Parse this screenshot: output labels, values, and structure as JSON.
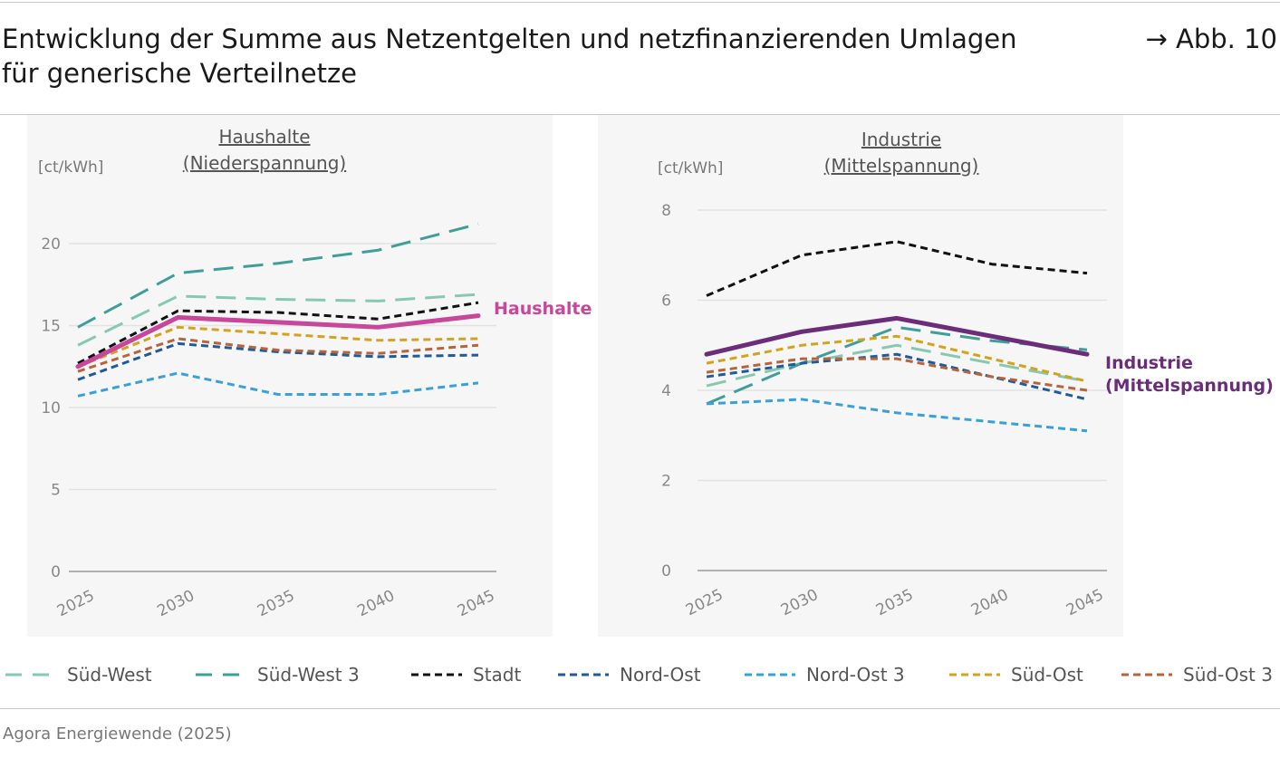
{
  "header": {
    "title_line1": "Entwicklung der Summe aus Netzentgelten und netzfinanzierenden Umlagen",
    "title_line2": "für generische Verteilnetze",
    "figure_ref": "→ Abb. 10"
  },
  "source": "Agora Energiewende (2025)",
  "chart_data": [
    {
      "type": "line",
      "title_line1": "Haushalte",
      "title_line2": "(Niederspannung)",
      "ylabel": "[ct/kWh]",
      "ylim": [
        0,
        22
      ],
      "yticks": [
        0,
        5,
        10,
        15,
        20
      ],
      "x": [
        "2025",
        "2030",
        "2035",
        "2040",
        "2045"
      ],
      "highlight_label": "Haushalte",
      "highlight_color": "#c8479a",
      "series": [
        {
          "name": "Süd-West",
          "values": [
            13.8,
            16.8,
            16.6,
            16.5,
            16.9
          ],
          "color": "#86c9b0",
          "dash": "long"
        },
        {
          "name": "Süd-West 3",
          "values": [
            14.9,
            18.2,
            18.8,
            19.6,
            21.2
          ],
          "color": "#3f9e9a",
          "dash": "long"
        },
        {
          "name": "Stadt",
          "values": [
            12.7,
            15.9,
            15.8,
            15.4,
            16.4
          ],
          "color": "#111111",
          "dash": "short"
        },
        {
          "name": "Nord-Ost",
          "values": [
            11.7,
            13.9,
            13.4,
            13.1,
            13.2
          ],
          "color": "#1e5a9c",
          "dash": "short"
        },
        {
          "name": "Nord-Ost 3",
          "values": [
            10.7,
            12.1,
            10.8,
            10.8,
            11.5
          ],
          "color": "#3aa0d8",
          "dash": "short"
        },
        {
          "name": "Süd-Ost",
          "values": [
            12.5,
            14.9,
            14.5,
            14.1,
            14.2
          ],
          "color": "#d4a21c",
          "dash": "short"
        },
        {
          "name": "Süd-Ost 3",
          "values": [
            12.2,
            14.2,
            13.5,
            13.3,
            13.8
          ],
          "color": "#b8633a",
          "dash": "short"
        },
        {
          "name": "Haushalte",
          "values": [
            12.5,
            15.5,
            15.2,
            14.9,
            15.6
          ],
          "color": "#c8479a",
          "dash": "solid",
          "highlight": true
        }
      ]
    },
    {
      "type": "line",
      "title_line1": "Industrie",
      "title_line2": "(Mittelspannung)",
      "ylabel": "[ct/kWh]",
      "ylim": [
        0,
        8
      ],
      "yticks": [
        0,
        2,
        4,
        6,
        8
      ],
      "x": [
        "2025",
        "2030",
        "2035",
        "2040",
        "2045"
      ],
      "highlight_label_line1": "Industrie",
      "highlight_label_line2": "(Mittelspannung)",
      "highlight_color": "#6b2d7a",
      "series": [
        {
          "name": "Süd-West",
          "values": [
            4.1,
            4.6,
            5.0,
            4.6,
            4.2
          ],
          "color": "#86c9b0",
          "dash": "long"
        },
        {
          "name": "Süd-West 3",
          "values": [
            3.7,
            4.6,
            5.4,
            5.1,
            4.9
          ],
          "color": "#3f9e9a",
          "dash": "long"
        },
        {
          "name": "Stadt",
          "values": [
            6.1,
            7.0,
            7.3,
            6.8,
            6.6
          ],
          "color": "#111111",
          "dash": "short"
        },
        {
          "name": "Nord-Ost",
          "values": [
            4.3,
            4.6,
            4.8,
            4.3,
            3.8
          ],
          "color": "#1e5a9c",
          "dash": "short"
        },
        {
          "name": "Nord-Ost 3",
          "values": [
            3.7,
            3.8,
            3.5,
            3.3,
            3.1
          ],
          "color": "#3aa0d8",
          "dash": "short"
        },
        {
          "name": "Süd-Ost",
          "values": [
            4.6,
            5.0,
            5.2,
            4.7,
            4.2
          ],
          "color": "#d4a21c",
          "dash": "short"
        },
        {
          "name": "Süd-Ost 3",
          "values": [
            4.4,
            4.7,
            4.7,
            4.3,
            4.0
          ],
          "color": "#b8633a",
          "dash": "short"
        },
        {
          "name": "Industrie (Mittelspannung)",
          "values": [
            4.8,
            5.3,
            5.6,
            5.2,
            4.8
          ],
          "color": "#6b2d7a",
          "dash": "solid",
          "highlight": true
        }
      ]
    }
  ],
  "legend": [
    {
      "label": "Süd-West",
      "color": "#86c9b0",
      "dash": "long"
    },
    {
      "label": "Süd-West 3",
      "color": "#3f9e9a",
      "dash": "long"
    },
    {
      "label": "Stadt",
      "color": "#111111",
      "dash": "short"
    },
    {
      "label": "Nord-Ost",
      "color": "#1e5a9c",
      "dash": "short"
    },
    {
      "label": "Nord-Ost 3",
      "color": "#3aa0d8",
      "dash": "short"
    },
    {
      "label": "Süd-Ost",
      "color": "#d4a21c",
      "dash": "short"
    },
    {
      "label": "Süd-Ost 3",
      "color": "#b8633a",
      "dash": "short"
    }
  ]
}
